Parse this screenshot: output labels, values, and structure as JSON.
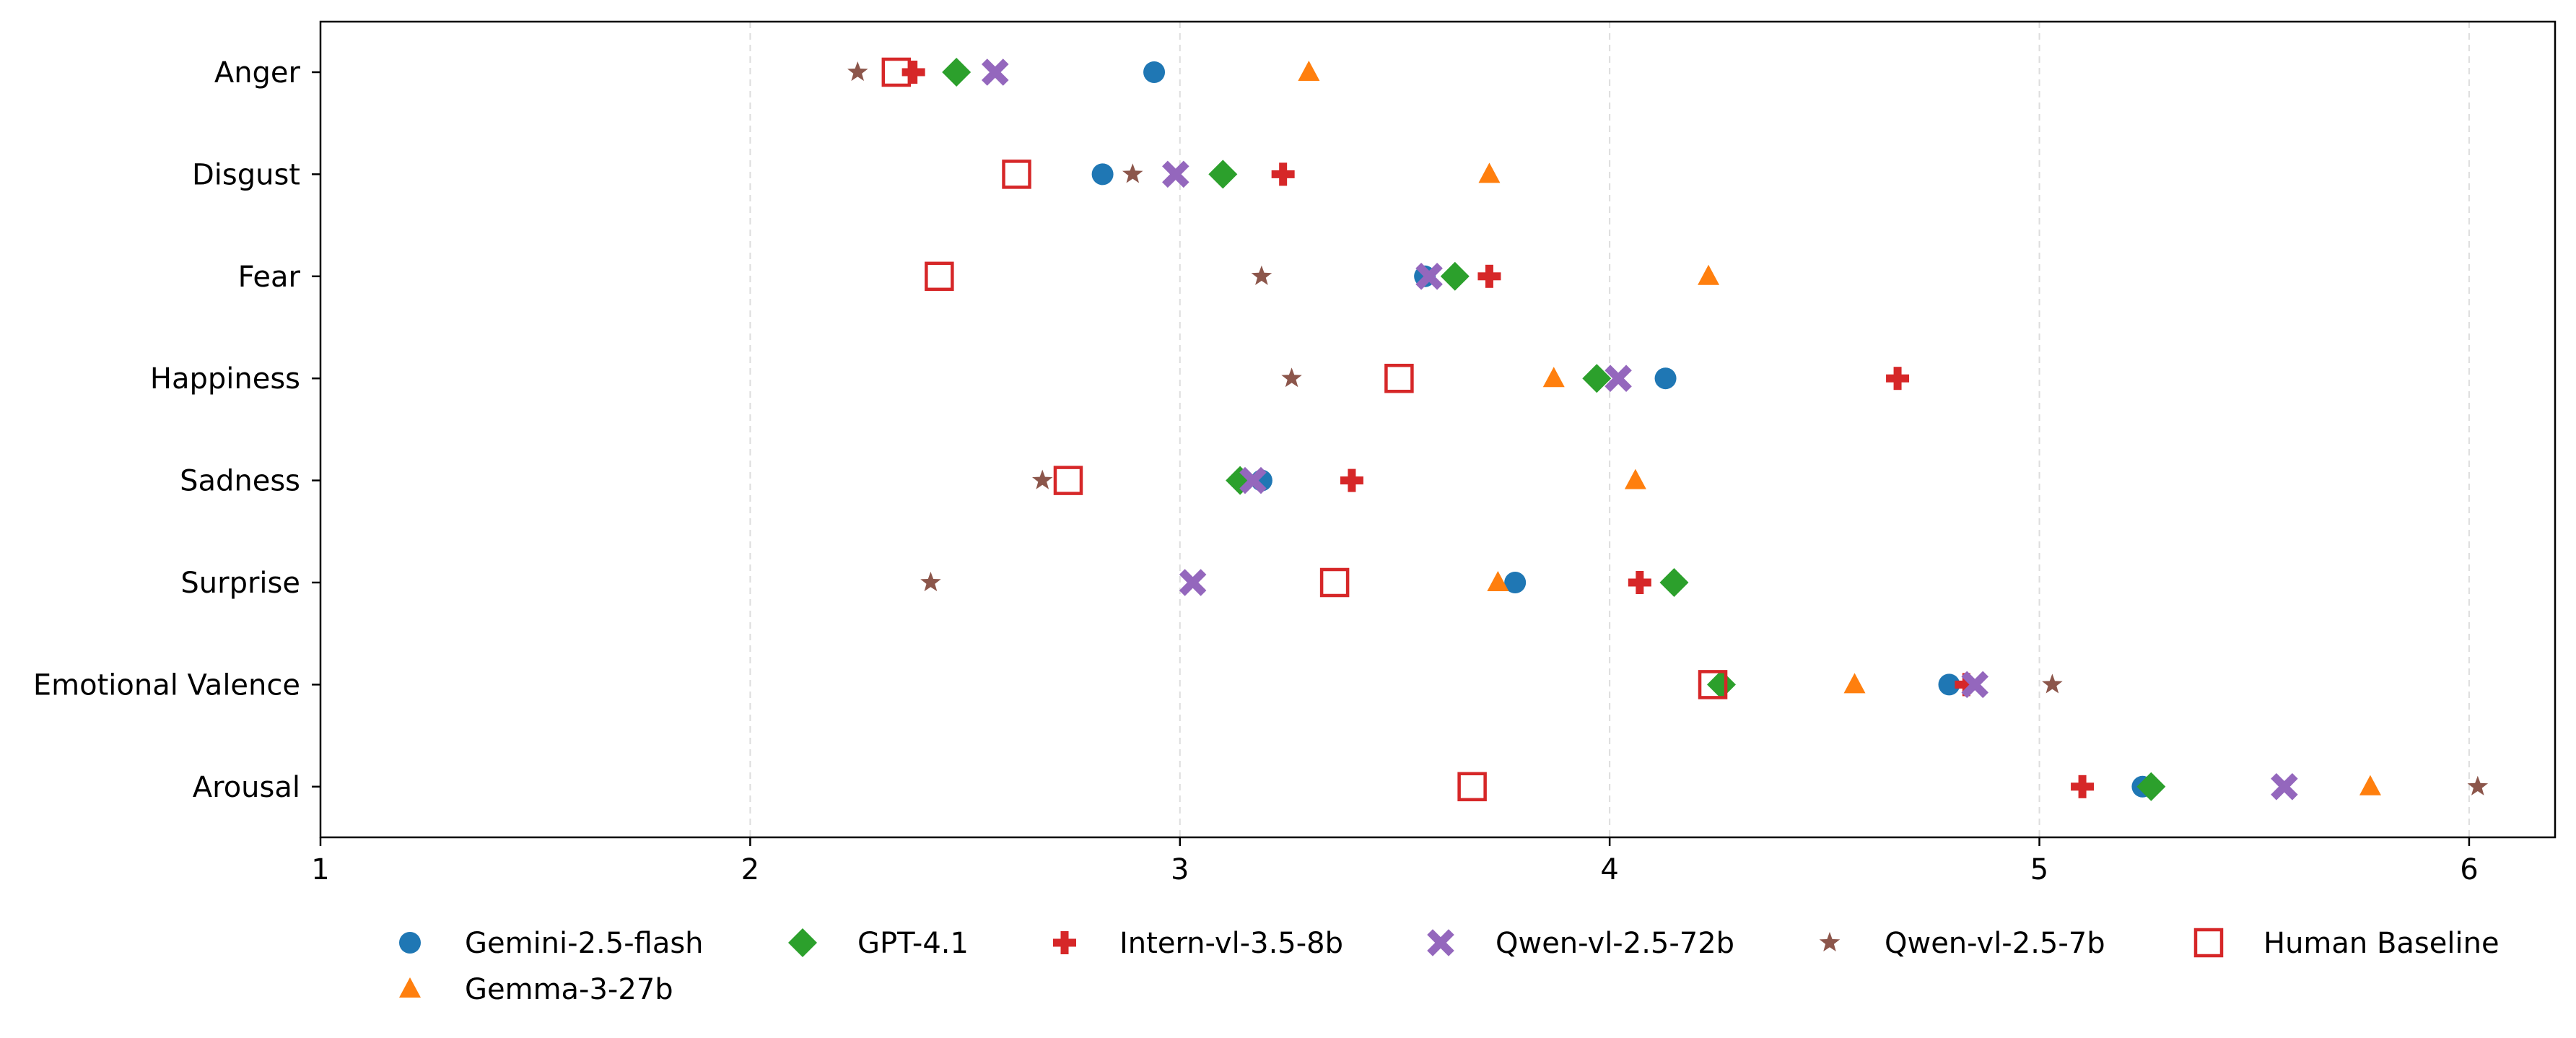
{
  "chart_data": {
    "type": "scatter",
    "title": "",
    "xlabel": "",
    "ylabel": "",
    "xlim": [
      1,
      6.2
    ],
    "x_ticks": [
      1,
      2,
      3,
      4,
      5,
      6
    ],
    "grid": "vertical-dashed",
    "legend_location": "bottom-center",
    "categories": [
      "Anger",
      "Disgust",
      "Fear",
      "Happiness",
      "Sadness",
      "Surprise",
      "Emotional Valence",
      "Arousal"
    ],
    "series": [
      {
        "name": "Gemini-2.5-flash",
        "marker": "circle",
        "color": "#1f77b4",
        "values": [
          2.94,
          2.82,
          3.57,
          4.13,
          3.19,
          3.78,
          4.79,
          5.24
        ]
      },
      {
        "name": "GPT-4.1",
        "marker": "diamond",
        "color": "#2ca02c",
        "values": [
          2.48,
          3.1,
          3.64,
          3.97,
          3.14,
          4.15,
          4.26,
          5.26
        ]
      },
      {
        "name": "Intern-vl-3.5-8b",
        "marker": "plus",
        "color": "#d62728",
        "values": [
          2.38,
          3.24,
          3.72,
          4.67,
          3.4,
          4.07,
          4.83,
          5.1
        ]
      },
      {
        "name": "Qwen-vl-2.5-72b",
        "marker": "x",
        "color": "#9467bd",
        "values": [
          2.57,
          2.99,
          3.58,
          4.02,
          3.17,
          3.03,
          4.85,
          5.57
        ]
      },
      {
        "name": "Qwen-vl-2.5-7b",
        "marker": "star",
        "color": "#8c564b",
        "values": [
          2.25,
          2.89,
          3.19,
          3.26,
          2.68,
          2.42,
          5.03,
          6.02
        ]
      },
      {
        "name": "Human Baseline",
        "marker": "square-open",
        "color": "#d62728",
        "values": [
          2.34,
          2.62,
          2.44,
          3.51,
          2.74,
          3.36,
          4.24,
          3.68
        ]
      },
      {
        "name": "Gemma-3-27b",
        "marker": "triangle",
        "color": "#ff7f0e",
        "values": [
          3.3,
          3.72,
          4.23,
          3.87,
          4.06,
          3.74,
          4.57,
          5.77
        ]
      }
    ],
    "legend_order": [
      "Gemini-2.5-flash",
      "GPT-4.1",
      "Intern-vl-3.5-8b",
      "Qwen-vl-2.5-72b",
      "Qwen-vl-2.5-7b",
      "Human Baseline",
      "Gemma-3-27b"
    ]
  }
}
